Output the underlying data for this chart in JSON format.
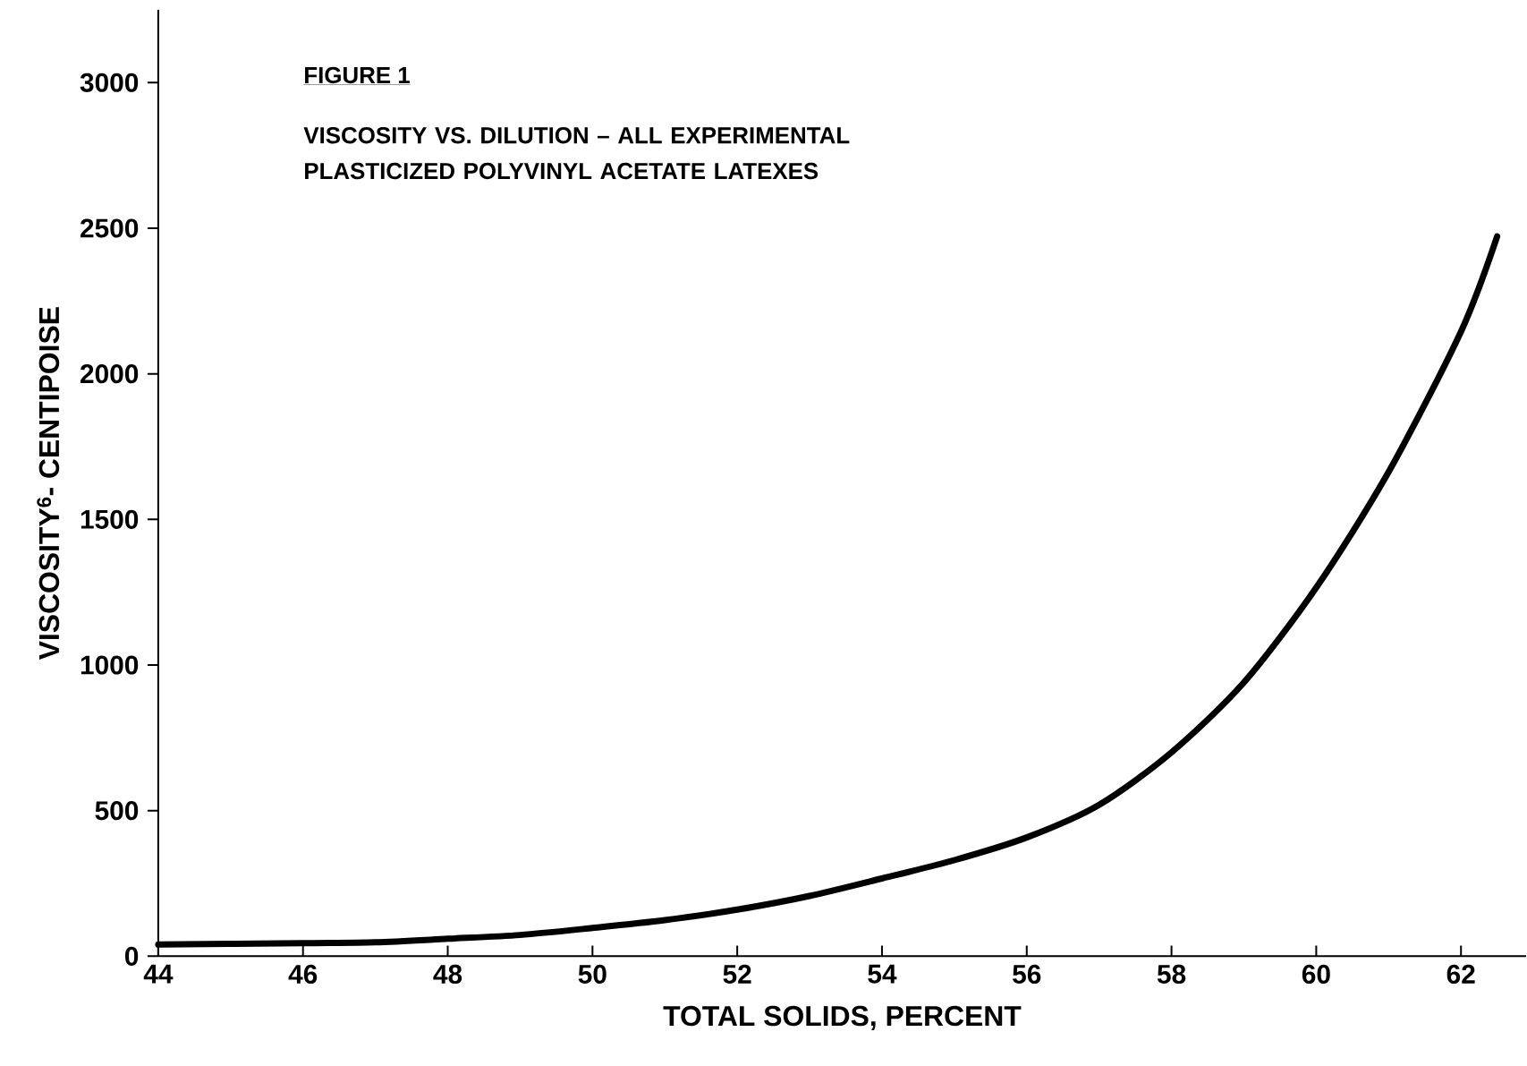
{
  "chart_data": {
    "type": "line",
    "title": "FIGURE 1",
    "subtitle": "VISCOSITY VS. DILUTION – ALL EXPERIMENTAL PLASTICIZED POLYVINYL ACETATE LATEXES",
    "xlabel": "TOTAL SOLIDS, PERCENT",
    "ylabel": "VISCOSITY$^{6}$- CENTIPOISE",
    "x": [
      44,
      46,
      47,
      48,
      49,
      50,
      51,
      52,
      53,
      54,
      55,
      56,
      57,
      58,
      59,
      60,
      61,
      62,
      62.5
    ],
    "series": [
      {
        "color": "#000000",
        "values": [
          40,
          45,
          48,
          60,
          73,
          97,
          124,
          160,
          207,
          267,
          330,
          408,
          520,
          700,
          940,
          1266,
          1663,
          2145,
          2472
        ]
      }
    ],
    "xlim": [
      44,
      62.9
    ],
    "ylim": [
      0,
      3250
    ],
    "xticks": [
      44,
      46,
      48,
      50,
      52,
      54,
      56,
      58,
      60,
      62
    ],
    "yticks": [
      0,
      500,
      1000,
      1500,
      2000,
      2500,
      3000
    ],
    "grid": false,
    "marker": "none",
    "line_style": "solid"
  }
}
